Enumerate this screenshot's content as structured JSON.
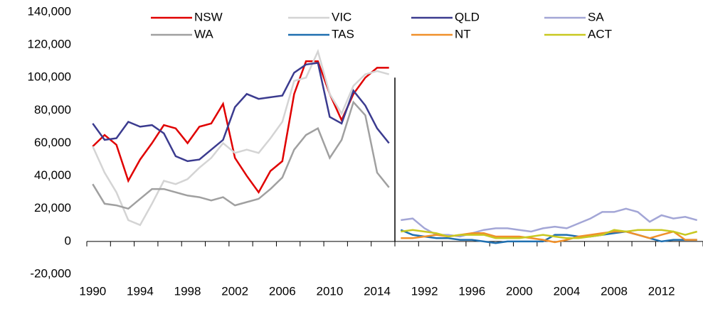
{
  "chart_data": {
    "type": "line",
    "categories": [
      "1990",
      null,
      null,
      null,
      "1994",
      null,
      null,
      null,
      "1998",
      null,
      null,
      null,
      "2002",
      null,
      null,
      null,
      "2006",
      null,
      null,
      null,
      "2010",
      null,
      null,
      null,
      "2014",
      null,
      null,
      null,
      "1992",
      null,
      null,
      null,
      "1996",
      null,
      null,
      null,
      "2000",
      null,
      null,
      null,
      "2004",
      null,
      null,
      null,
      "2008",
      null,
      null,
      null,
      "2012",
      null,
      null,
      null
    ],
    "ylim": [
      -20000,
      140000
    ],
    "yticks": [
      {
        "value": -20000,
        "label": "-20,000"
      },
      0,
      {
        "value": 20000,
        "label": "20,000"
      },
      {
        "value": 40000,
        "label": "40,000"
      },
      {
        "value": 60000,
        "label": "60,000"
      },
      {
        "value": 80000,
        "label": "80,000"
      },
      {
        "value": 100000,
        "label": "100,000"
      },
      {
        "value": 120000,
        "label": "120,000"
      },
      {
        "value": 140000,
        "label": "140,000"
      }
    ],
    "series": [
      {
        "name": "NSW",
        "color": "#e00000",
        "values": [
          58000,
          65000,
          59000,
          37000,
          50000,
          60000,
          71000,
          69000,
          60000,
          70000,
          72000,
          84000,
          51000,
          40000,
          30000,
          43000,
          49000,
          90000,
          110000,
          110000,
          90000,
          74000,
          90000,
          100000,
          106000,
          106000,
          null,
          null,
          null,
          null,
          null,
          null,
          null,
          null,
          null,
          null,
          null,
          null,
          null,
          null,
          null,
          null,
          null,
          null,
          null,
          null,
          null,
          null,
          null,
          null,
          null,
          null
        ]
      },
      {
        "name": "VIC",
        "color": "#d4d4d4",
        "values": [
          58000,
          42000,
          30000,
          13000,
          10000,
          23000,
          37000,
          35000,
          38000,
          45000,
          51000,
          60000,
          54000,
          56000,
          54000,
          63000,
          73000,
          98000,
          100000,
          116000,
          90000,
          78000,
          95000,
          102000,
          104000,
          102000,
          null,
          null,
          null,
          null,
          null,
          null,
          null,
          null,
          null,
          null,
          null,
          null,
          null,
          null,
          null,
          null,
          null,
          null,
          null,
          null,
          null,
          null,
          null,
          null,
          null,
          null
        ]
      },
      {
        "name": "QLD",
        "color": "#3b3b8f",
        "values": [
          72000,
          62000,
          63000,
          73000,
          70000,
          71000,
          66000,
          52000,
          49000,
          50000,
          56000,
          62000,
          82000,
          90000,
          87000,
          88000,
          89000,
          103000,
          108000,
          109000,
          76000,
          72000,
          92000,
          83000,
          69000,
          60000,
          null,
          null,
          null,
          null,
          null,
          null,
          null,
          null,
          null,
          null,
          null,
          null,
          null,
          null,
          null,
          null,
          null,
          null,
          null,
          null,
          null,
          null,
          null,
          null,
          null,
          null
        ]
      },
      {
        "name": "SA",
        "color": "#a3a6d6",
        "values": [
          null,
          null,
          null,
          null,
          null,
          null,
          null,
          null,
          null,
          null,
          null,
          null,
          null,
          null,
          null,
          null,
          null,
          null,
          null,
          null,
          null,
          null,
          null,
          null,
          null,
          null,
          13000,
          14000,
          8000,
          4000,
          4000,
          3000,
          5000,
          7000,
          8000,
          8000,
          7000,
          6000,
          8000,
          9000,
          8000,
          11000,
          14000,
          18000,
          18000,
          20000,
          18000,
          12000,
          16000,
          14000,
          15000,
          13000
        ]
      },
      {
        "name": "WA",
        "color": "#a0a0a0",
        "values": [
          35000,
          23000,
          22000,
          20000,
          26000,
          32000,
          32000,
          30000,
          28000,
          27000,
          25000,
          27000,
          22000,
          24000,
          26000,
          32000,
          39000,
          56000,
          65000,
          69000,
          51000,
          62000,
          85000,
          77000,
          42000,
          33000,
          null,
          null,
          null,
          null,
          null,
          null,
          null,
          null,
          null,
          null,
          null,
          null,
          null,
          null,
          null,
          null,
          null,
          null,
          null,
          null,
          null,
          null,
          null,
          null,
          null,
          null
        ]
      },
      {
        "name": "TAS",
        "color": "#1f6fb0",
        "values": [
          null,
          null,
          null,
          null,
          null,
          null,
          null,
          null,
          null,
          null,
          null,
          null,
          null,
          null,
          null,
          null,
          null,
          null,
          null,
          null,
          null,
          null,
          null,
          null,
          null,
          null,
          7000,
          4000,
          3000,
          2000,
          2000,
          1000,
          1000,
          0,
          -1000,
          0,
          0,
          0,
          0,
          4000,
          4000,
          3000,
          3000,
          4000,
          5000,
          6000,
          4000,
          2000,
          0,
          1000,
          1000,
          1000
        ]
      },
      {
        "name": "NT",
        "color": "#f0902a",
        "values": [
          null,
          null,
          null,
          null,
          null,
          null,
          null,
          null,
          null,
          null,
          null,
          null,
          null,
          null,
          null,
          null,
          null,
          null,
          null,
          null,
          null,
          null,
          null,
          null,
          null,
          null,
          2000,
          2000,
          3000,
          4000,
          3000,
          4000,
          5000,
          5000,
          3000,
          3000,
          3000,
          2000,
          1000,
          -500,
          1000,
          3000,
          4000,
          5000,
          6000,
          6000,
          4000,
          2000,
          4000,
          6000,
          1000,
          1000
        ]
      },
      {
        "name": "ACT",
        "color": "#c8c820",
        "values": [
          null,
          null,
          null,
          null,
          null,
          null,
          null,
          null,
          null,
          null,
          null,
          null,
          null,
          null,
          null,
          null,
          null,
          null,
          null,
          null,
          null,
          null,
          null,
          null,
          null,
          null,
          6000,
          7000,
          6000,
          5000,
          3000,
          4000,
          4000,
          4000,
          2000,
          2000,
          2000,
          3000,
          4000,
          3000,
          2000,
          2000,
          3000,
          4000,
          7000,
          6000,
          7000,
          7000,
          7000,
          6000,
          4000,
          6000
        ]
      }
    ]
  }
}
